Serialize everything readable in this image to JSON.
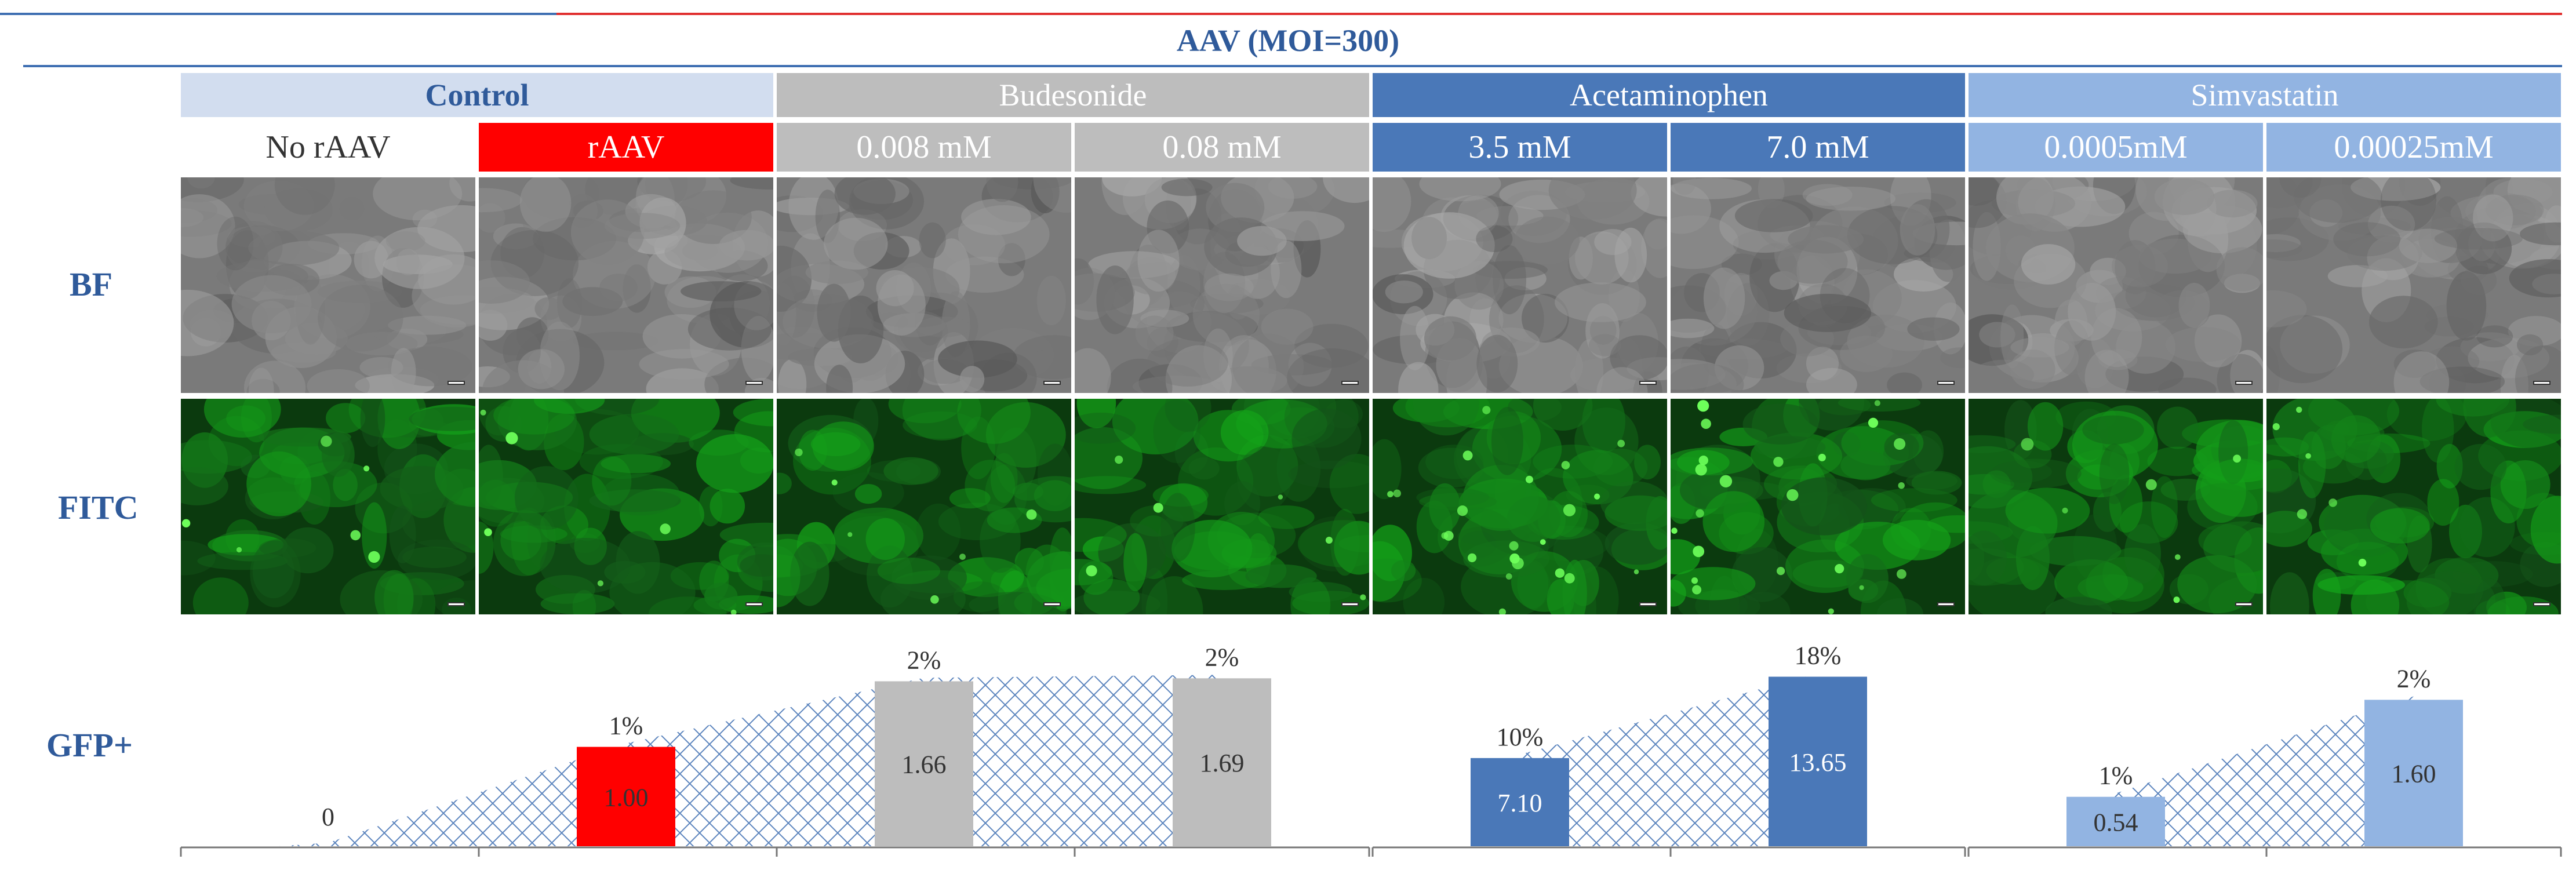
{
  "header": {
    "title": "AAV (MOI=300)",
    "groups": [
      {
        "label": "Control",
        "color": "#d2ddef",
        "textColor": "#2f5a9a",
        "bold": true
      },
      {
        "label": "Budesonide",
        "color": "#bdbdbd",
        "textColor": "#ffffff",
        "bold": false
      },
      {
        "label": "Acetaminophen",
        "color": "#4a78b8",
        "textColor": "#ffffff",
        "bold": false
      },
      {
        "label": "Simvastatin",
        "color": "#92b4e2",
        "textColor": "#ffffff",
        "bold": false
      }
    ],
    "conditions": [
      {
        "label": "No rAAV",
        "color": "#ffffff",
        "textColor": "#333333"
      },
      {
        "label": "rAAV",
        "color": "#ff0000",
        "textColor": "#ffffff"
      },
      {
        "label": "0.008 mM",
        "color": "#bdbdbd",
        "textColor": "#ffffff"
      },
      {
        "label": "0.08 mM",
        "color": "#bdbdbd",
        "textColor": "#ffffff"
      },
      {
        "label": "3.5 mM",
        "color": "#4a78b8",
        "textColor": "#ffffff"
      },
      {
        "label": "7.0 mM",
        "color": "#4a78b8",
        "textColor": "#ffffff"
      },
      {
        "label": "0.0005mM",
        "color": "#92b4e2",
        "textColor": "#ffffff"
      },
      {
        "label": "0.00025mM",
        "color": "#92b4e2",
        "textColor": "#ffffff"
      }
    ]
  },
  "rows": {
    "bf_label": "BF",
    "fitc_label": "FITC",
    "gfp_label": "GFP+"
  },
  "chart_data": {
    "type": "bar",
    "categories": [
      "No rAAV",
      "rAAV",
      "0.008 mM",
      "0.08 mM",
      "3.5 mM",
      "7.0 mM",
      "0.0005mM",
      "0.00025mM"
    ],
    "values": [
      0,
      1.0,
      1.66,
      1.69,
      7.1,
      13.65,
      0.54,
      1.6
    ],
    "value_labels": [
      "0",
      "1.00",
      "1.66",
      "1.69",
      "7.10",
      "13.65",
      "0.54",
      "1.60"
    ],
    "percent_labels": [
      "",
      "1%",
      "2%",
      "2%",
      "10%",
      "18%",
      "1%",
      "2%"
    ],
    "bar_colors": [
      "#ffffff",
      "#ff0000",
      "#bdbdbd",
      "#bdbdbd",
      "#4a78b8",
      "#4a78b8",
      "#92b4e2",
      "#92b4e2"
    ],
    "value_text_colors": [
      "#333333",
      "#333333",
      "#333333",
      "#333333",
      "#ffffff",
      "#ffffff",
      "#333333",
      "#333333"
    ],
    "panels": [
      {
        "indices": [
          0,
          1,
          2,
          3
        ],
        "ylim": [
          0,
          1.75
        ],
        "shape": "#3f6fb2"
      },
      {
        "indices": [
          4,
          5
        ],
        "ylim": [
          0,
          14
        ],
        "shape": "#3f6fb2"
      },
      {
        "indices": [
          6,
          7
        ],
        "ylim": [
          0,
          1.9
        ],
        "shape": "#3f6fb2"
      }
    ],
    "title": "",
    "xlabel": "",
    "ylabel": ""
  },
  "colors": {
    "bf_base": "#7a7a7a",
    "fitc_base": "#0b3a0e",
    "fitc_spot": "#6dff5a",
    "rule_blue": "#3f6fb2",
    "rule_red": "#e03030",
    "label_blue": "#2f5a9a"
  }
}
